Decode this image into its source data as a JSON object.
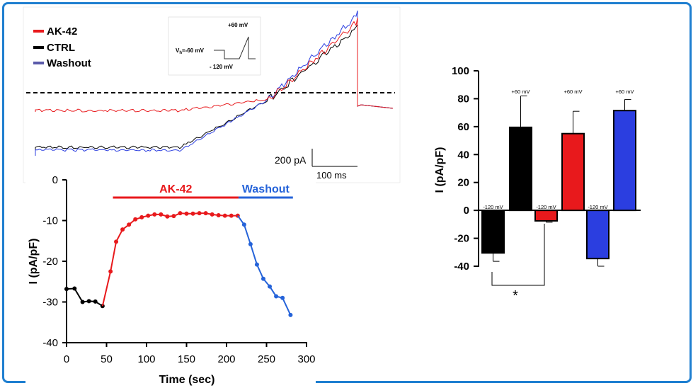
{
  "colors": {
    "ak42": "#e8191c",
    "ctrl": "#000000",
    "washout": "#2b3ee0",
    "washout_legend": "#5a5aaa",
    "washout_time": "#2563d9",
    "border": "#1f7fd0"
  },
  "chart_data": [
    {
      "type": "line",
      "panel": "current-traces",
      "series": [
        {
          "name": "AK-42"
        },
        {
          "name": "CTRL"
        },
        {
          "name": "Washout"
        }
      ],
      "inset": {
        "vh_label": "V",
        "vh_sub": "h",
        "vh_value": "=-60 mV",
        "top_label": "+60 mV",
        "bottom_label": "- 120 mV"
      },
      "scalebar": {
        "y": "200 pA",
        "x": "100 ms"
      },
      "zero_line": "dashed"
    },
    {
      "type": "line",
      "panel": "time-course",
      "xlabel": "Time (sec)",
      "ylabel": "I (pA/pF)",
      "xlim": [
        0,
        300
      ],
      "ylim": [
        -40,
        0
      ],
      "xticks": [
        0,
        50,
        100,
        150,
        200,
        250,
        300
      ],
      "yticks": [
        0,
        -10,
        -20,
        -30,
        -40
      ],
      "bars": [
        {
          "label": "AK-42",
          "from": 58,
          "to": 215
        },
        {
          "label": "Washout",
          "from": 215,
          "to": 283
        }
      ],
      "series": [
        {
          "name": "CTRL",
          "x": [
            0,
            10,
            20,
            28,
            36,
            45
          ],
          "y": [
            -26.8,
            -26.7,
            -30.0,
            -29.8,
            -29.9,
            -31.0
          ]
        },
        {
          "name": "AK-42",
          "x": [
            45,
            55,
            62,
            70,
            78,
            86,
            94,
            102,
            110,
            118,
            126,
            134,
            142,
            150,
            158,
            166,
            174,
            182,
            190,
            198,
            206,
            214
          ],
          "y": [
            -31.0,
            -22.5,
            -15.2,
            -12.2,
            -11.0,
            -9.7,
            -9.2,
            -8.8,
            -8.5,
            -8.5,
            -9.0,
            -8.9,
            -8.2,
            -8.3,
            -8.3,
            -8.2,
            -8.2,
            -8.5,
            -8.7,
            -8.8,
            -8.8,
            -8.8
          ]
        },
        {
          "name": "Washout",
          "x": [
            214,
            222,
            230,
            238,
            246,
            254,
            262,
            270,
            280
          ],
          "y": [
            -8.8,
            -11.0,
            -15.8,
            -20.8,
            -24.3,
            -26.2,
            -28.6,
            -29.0,
            -33.2
          ]
        }
      ]
    },
    {
      "type": "bar",
      "panel": "summary",
      "ylabel": "I (pA/pF)",
      "ylim": [
        -40,
        100
      ],
      "yticks": [
        100,
        80,
        60,
        40,
        20,
        0,
        -20,
        -40
      ],
      "bars": [
        {
          "label": "-120 mV",
          "value": -30.5,
          "err": 6,
          "color": "#000000"
        },
        {
          "label": "+60 mV",
          "value": 59.5,
          "err": 22.5,
          "color": "#000000"
        },
        {
          "label": "-120 mV",
          "value": -7.5,
          "err": 1,
          "color": "#e8191c"
        },
        {
          "label": "+60 mV",
          "value": 55,
          "err": 16,
          "color": "#e8191c"
        },
        {
          "label": "-120 mV",
          "value": -34.5,
          "err": 5.5,
          "color": "#2b3ee0"
        },
        {
          "label": "+60 mV",
          "value": 71.5,
          "err": 8,
          "color": "#2b3ee0"
        }
      ],
      "significance": "*"
    }
  ]
}
